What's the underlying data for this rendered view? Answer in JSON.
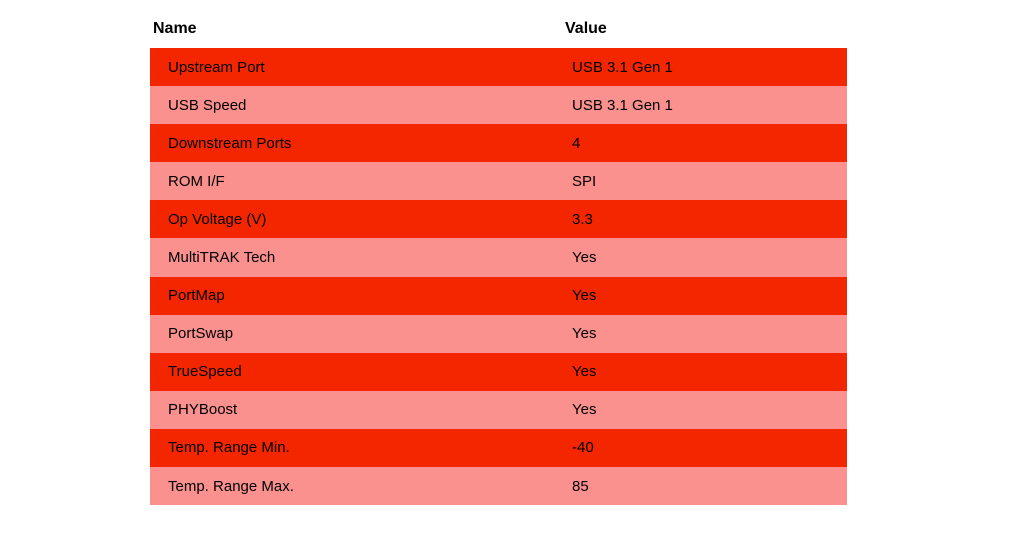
{
  "colors": {
    "page_bg": "#ffffff",
    "row_red": "#f42600",
    "row_salmon": "#fa918e",
    "header_text": "#000000",
    "cell_text": "#000000"
  },
  "table": {
    "headers": {
      "name": "Name",
      "value": "Value"
    },
    "rows": [
      {
        "name": "Upstream Port",
        "value": "USB 3.1 Gen 1"
      },
      {
        "name": "USB Speed",
        "value": "USB 3.1 Gen 1"
      },
      {
        "name": "Downstream Ports",
        "value": "4"
      },
      {
        "name": "ROM I/F",
        "value": "SPI"
      },
      {
        "name": "Op Voltage (V)",
        "value": "3.3"
      },
      {
        "name": "MultiTRAK Tech",
        "value": "Yes"
      },
      {
        "name": "PortMap",
        "value": "Yes"
      },
      {
        "name": "PortSwap",
        "value": "Yes"
      },
      {
        "name": "TrueSpeed",
        "value": "Yes"
      },
      {
        "name": "PHYBoost",
        "value": "Yes"
      },
      {
        "name": "Temp. Range Min.",
        "value": "-40"
      },
      {
        "name": "Temp. Range Max.",
        "value": "85"
      }
    ]
  }
}
